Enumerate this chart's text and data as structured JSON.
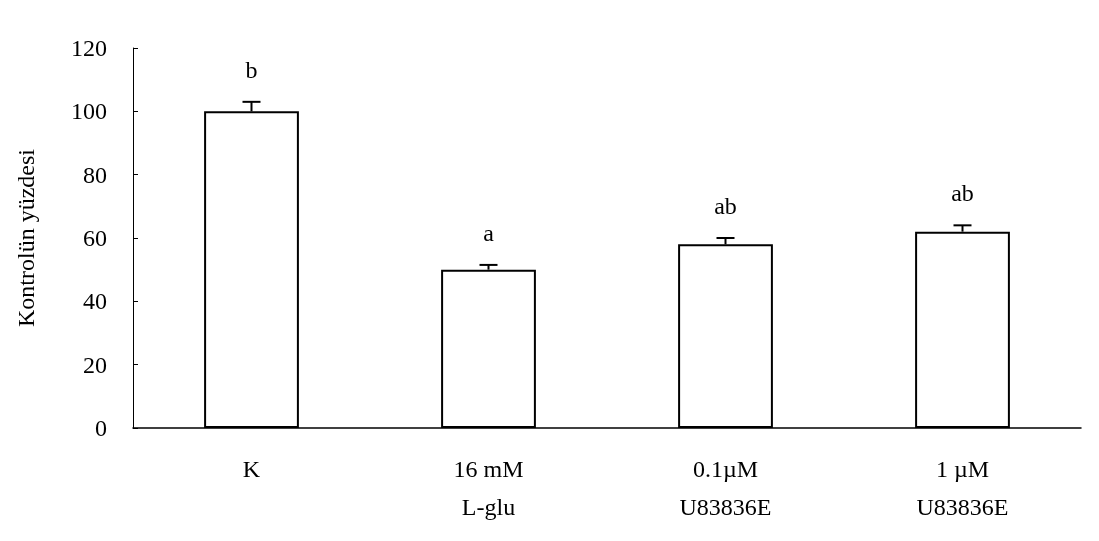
{
  "chart_data": {
    "type": "bar",
    "ylabel": "Kontrolün yüzdesi",
    "categories": [
      "K",
      "16 mM\nL-glu",
      "0.1µM\nU83836E",
      "1 µM\nU83836E"
    ],
    "values": [
      100,
      50,
      58,
      62
    ],
    "errors": [
      3,
      1.5,
      2,
      2
    ],
    "color": "#ffffff",
    "ylim": [
      0,
      120
    ],
    "yticks": [
      0,
      20,
      40,
      60,
      80,
      100,
      120
    ],
    "grid": false,
    "annotations": [
      "b",
      "a",
      "ab",
      "ab"
    ]
  }
}
